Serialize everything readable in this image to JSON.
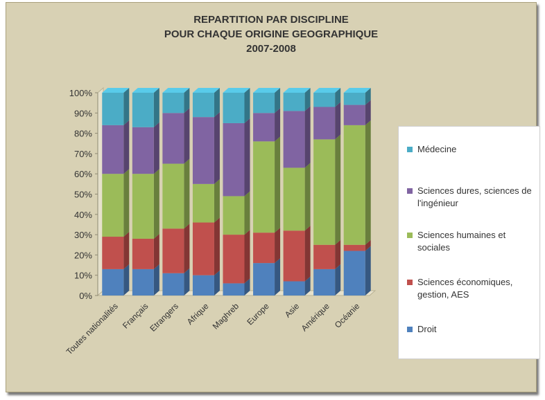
{
  "chart_data": {
    "type": "bar",
    "stacked": true,
    "three_d": true,
    "title": [
      "REPARTITION PAR DISCIPLINE",
      "POUR CHAQUE ORIGINE GEOGRAPHIQUE",
      "2007-2008"
    ],
    "categories": [
      "Toutes nationalités",
      "Français",
      "Etrangers",
      "Afrique",
      "Maghreb",
      "Europe",
      "Asie",
      "Amérique",
      "Océanie"
    ],
    "ylim": [
      0,
      100
    ],
    "yticks": [
      "0%",
      "10%",
      "20%",
      "30%",
      "40%",
      "50%",
      "60%",
      "70%",
      "80%",
      "90%",
      "100%"
    ],
    "grid": false,
    "legend_position": "right",
    "series": [
      {
        "name": "Droit",
        "color": "#4f81bd",
        "values": [
          13,
          13,
          11,
          10,
          6,
          16,
          7,
          13,
          22
        ]
      },
      {
        "name": "Sciences économiques, gestion, AES",
        "color": "#c0504d",
        "values": [
          16,
          15,
          22,
          26,
          24,
          15,
          25,
          12,
          3
        ]
      },
      {
        "name": "Sciences humaines et sociales",
        "color": "#9bbb59",
        "values": [
          31,
          32,
          32,
          19,
          19,
          45,
          31,
          52,
          59
        ]
      },
      {
        "name": "Sciences dures, sciences de l'ingénieur",
        "color": "#8064a2",
        "values": [
          24,
          23,
          25,
          33,
          36,
          14,
          28,
          16,
          10
        ]
      },
      {
        "name": "Médecine",
        "color": "#4bacc6",
        "values": [
          16,
          17,
          10,
          12,
          15,
          10,
          9,
          7,
          6
        ]
      }
    ],
    "legend_order": [
      "Médecine",
      "Sciences dures, sciences de l'ingénieur",
      "Sciences humaines et sociales",
      "Sciences économiques, gestion, AES",
      "Droit"
    ]
  }
}
